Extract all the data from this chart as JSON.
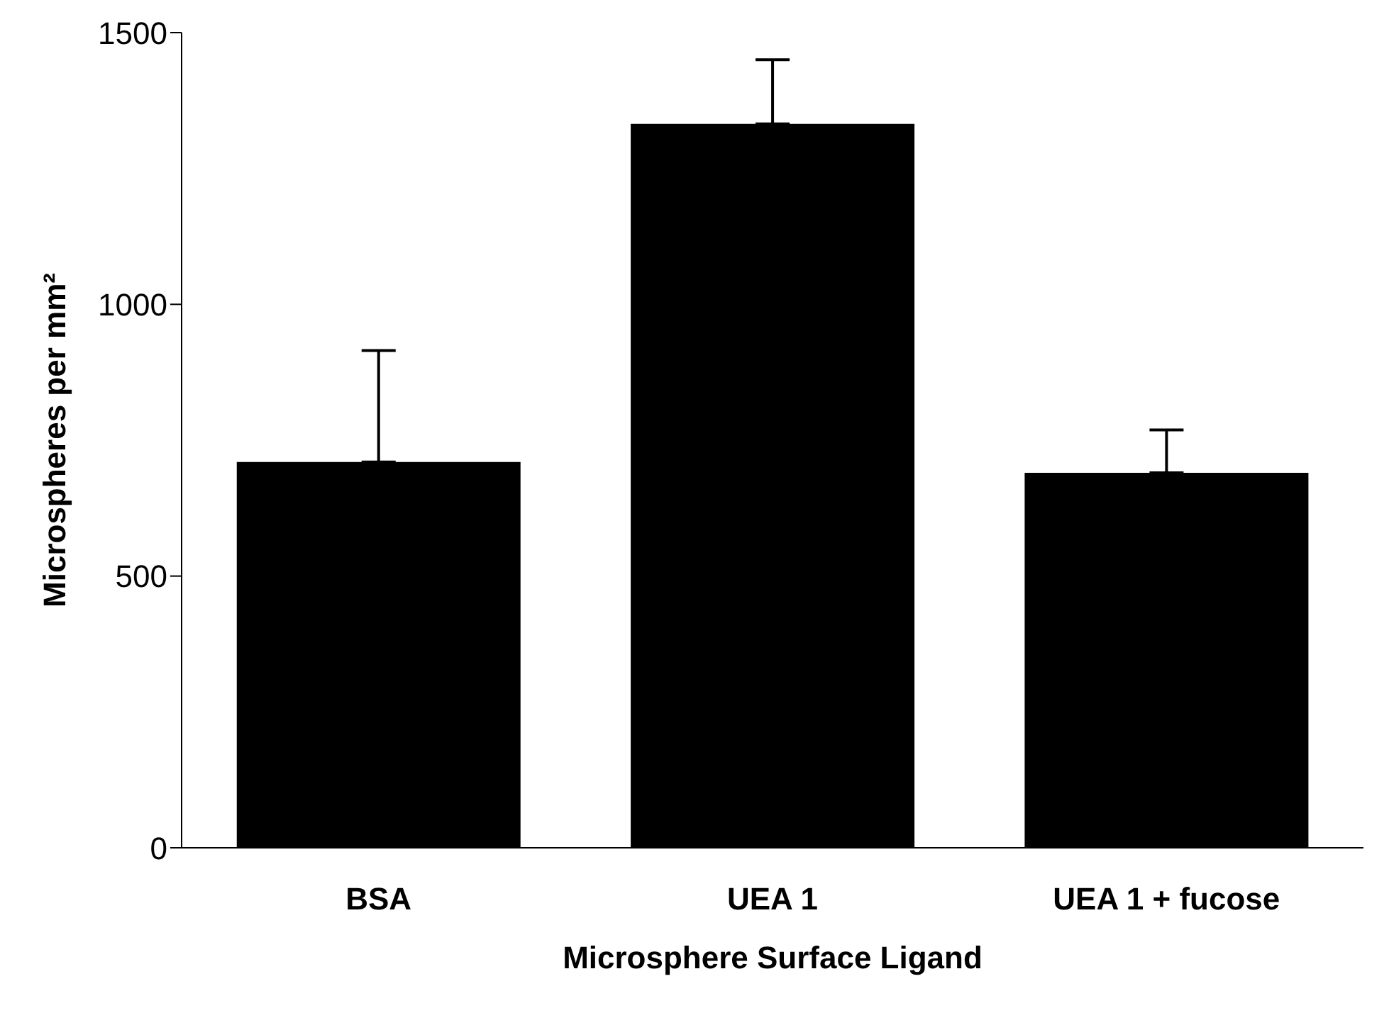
{
  "chart_data": {
    "type": "bar",
    "xlabel": "Microsphere Surface Ligand",
    "ylabel": "Microspheres per mm²",
    "categories": [
      "BSA",
      "UEA 1",
      "UEA 1 + fucose"
    ],
    "values": [
      710,
      1332,
      690
    ],
    "errors": [
      [
        710,
        915
      ],
      [
        1332,
        1450
      ],
      [
        690,
        769
      ]
    ],
    "color": "#000000",
    "ylim": [
      0,
      1500
    ],
    "yticks": [
      0,
      500,
      1000,
      1500
    ],
    "grid": false
  }
}
